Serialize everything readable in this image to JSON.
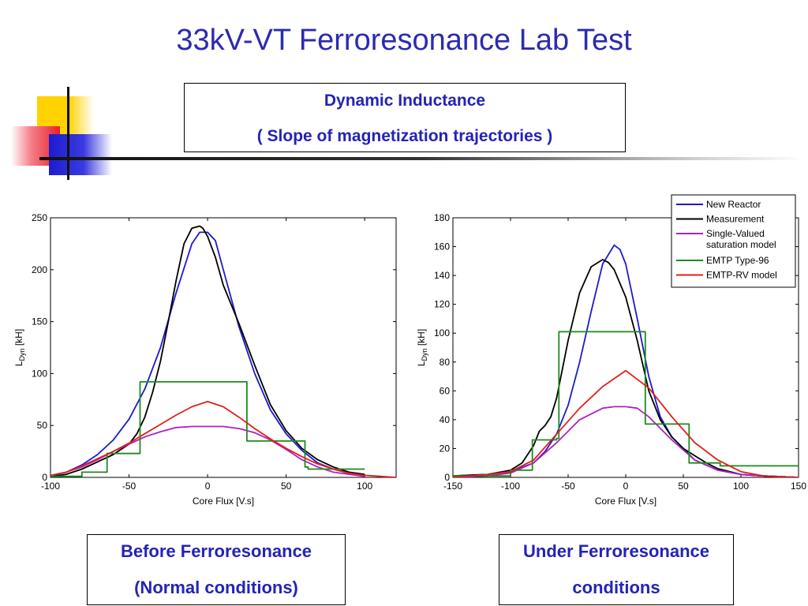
{
  "slide": {
    "title": "33kV-VT Ferroresonance Lab Test",
    "subtitle_line1": "Dynamic Inductance",
    "subtitle_line2": "( Slope of magnetization trajectories )"
  },
  "captions": {
    "left_line1": "Before Ferroresonance",
    "left_line2": "(Normal conditions)",
    "right_line1": "Under Ferroresonance",
    "right_line2": "conditions"
  },
  "colors": {
    "title": "#2b2bb0",
    "new_reactor": "#1a1acc",
    "measurement": "#000000",
    "single_valued": "#b020c0",
    "emtp_type96": "#1e8a1e",
    "emtp_rv": "#e0201a"
  },
  "chart_data": [
    {
      "type": "line",
      "xlabel": "Core Flux [V.s]",
      "ylabel": "L",
      "ylabel_sub": "Dyn",
      "ylabel_unit": " [kH]",
      "xlim": [
        -100,
        120
      ],
      "ylim": [
        0,
        250
      ],
      "xticks": [
        -100,
        -50,
        0,
        50,
        100
      ],
      "yticks": [
        0,
        50,
        100,
        150,
        200,
        250
      ],
      "grid": false,
      "series": [
        {
          "name": "New Reactor",
          "color": "#1a1acc",
          "x": [
            -98,
            -90,
            -80,
            -70,
            -60,
            -50,
            -40,
            -30,
            -20,
            -10,
            -5,
            0,
            5,
            10,
            20,
            30,
            40,
            50,
            60,
            70,
            80,
            90,
            100
          ],
          "y": [
            2,
            5,
            12,
            22,
            36,
            56,
            85,
            125,
            178,
            225,
            236,
            236,
            228,
            200,
            145,
            100,
            65,
            42,
            26,
            14,
            8,
            4,
            2
          ]
        },
        {
          "name": "Measurement",
          "color": "#000000",
          "x": [
            -98,
            -90,
            -80,
            -70,
            -60,
            -50,
            -45,
            -40,
            -35,
            -30,
            -25,
            -20,
            -15,
            -10,
            -5,
            -3,
            0,
            5,
            10,
            20,
            30,
            40,
            50,
            60,
            70,
            80,
            90,
            100
          ],
          "y": [
            1,
            3,
            8,
            15,
            22,
            32,
            42,
            58,
            82,
            112,
            150,
            190,
            225,
            240,
            242,
            240,
            232,
            212,
            185,
            148,
            108,
            70,
            45,
            28,
            17,
            10,
            5,
            3
          ]
        },
        {
          "name": "Single-Valued saturation model",
          "color": "#b020c0",
          "x": [
            -92,
            -80,
            -70,
            -60,
            -50,
            -40,
            -30,
            -20,
            -10,
            0,
            10,
            20,
            30,
            40,
            50,
            60,
            70,
            80,
            90,
            100
          ],
          "y": [
            4,
            10,
            17,
            25,
            32,
            39,
            44,
            48,
            49,
            49,
            49,
            47,
            43,
            36,
            27,
            17,
            10,
            5,
            3,
            1
          ]
        },
        {
          "name": "EMTP Type-96",
          "color": "#1e8a1e",
          "x": [
            -100,
            -80,
            -80,
            -64,
            -64,
            -43,
            -43,
            25,
            25,
            62,
            62,
            64,
            64,
            100
          ],
          "y": [
            1,
            1,
            5,
            5,
            23,
            23,
            92,
            92,
            35,
            35,
            10,
            10,
            8,
            8
          ]
        },
        {
          "name": "EMTP-RV model",
          "color": "#e0201a",
          "x": [
            -100,
            -90,
            -80,
            -70,
            -60,
            -50,
            -40,
            -30,
            -20,
            -10,
            0,
            10,
            20,
            30,
            40,
            50,
            60,
            70,
            80,
            90,
            100,
            110,
            120
          ],
          "y": [
            2,
            5,
            11,
            18,
            25,
            33,
            42,
            51,
            60,
            68,
            73,
            68,
            58,
            47,
            37,
            28,
            20,
            13,
            8,
            4,
            2,
            1,
            0
          ]
        }
      ]
    },
    {
      "type": "line",
      "xlabel": "Core Flux [V.s]",
      "ylabel": "L",
      "ylabel_sub": "Dyn",
      "ylabel_unit": " [kH]",
      "xlim": [
        -150,
        150
      ],
      "ylim": [
        0,
        180
      ],
      "xticks": [
        -150,
        -100,
        -50,
        0,
        50,
        100,
        150
      ],
      "yticks": [
        0,
        20,
        40,
        60,
        80,
        100,
        120,
        140,
        160,
        180
      ],
      "grid": false,
      "legend": "top-right",
      "series": [
        {
          "name": "New Reactor",
          "color": "#1a1acc",
          "x": [
            -150,
            -120,
            -100,
            -80,
            -70,
            -60,
            -50,
            -40,
            -30,
            -20,
            -10,
            -5,
            0,
            10,
            20,
            30,
            40,
            50,
            60,
            80,
            100,
            120,
            150
          ],
          "y": [
            1,
            2,
            4,
            10,
            18,
            30,
            50,
            80,
            115,
            148,
            161,
            158,
            148,
            110,
            70,
            42,
            28,
            20,
            12,
            5,
            2,
            1,
            0
          ]
        },
        {
          "name": "Measurement",
          "color": "#000000",
          "x": [
            -150,
            -120,
            -100,
            -90,
            -80,
            -75,
            -70,
            -65,
            -60,
            -50,
            -40,
            -30,
            -20,
            -15,
            -10,
            0,
            10,
            20,
            30,
            40,
            50,
            60,
            70,
            80,
            100,
            120,
            150
          ],
          "y": [
            1,
            2,
            5,
            10,
            22,
            32,
            36,
            42,
            55,
            95,
            128,
            146,
            151,
            149,
            144,
            125,
            95,
            60,
            40,
            28,
            20,
            15,
            10,
            6,
            2,
            1,
            0
          ]
        },
        {
          "name": "Single-Valued saturation model",
          "color": "#b020c0",
          "x": [
            -150,
            -120,
            -100,
            -80,
            -60,
            -40,
            -20,
            -10,
            0,
            10,
            20,
            40,
            60,
            80,
            100,
            120,
            150
          ],
          "y": [
            0,
            1,
            3,
            10,
            24,
            40,
            48,
            49,
            49,
            48,
            42,
            26,
            12,
            5,
            2,
            1,
            0
          ]
        },
        {
          "name": "EMTP Type-96",
          "color": "#1e8a1e",
          "x": [
            -150,
            -100,
            -100,
            -81,
            -81,
            -60,
            -60,
            -58,
            -58,
            17,
            17,
            55,
            55,
            82,
            82,
            150
          ],
          "y": [
            1,
            1,
            5,
            5,
            26,
            26,
            27,
            27,
            101,
            101,
            37,
            37,
            10,
            10,
            8,
            8
          ]
        },
        {
          "name": "EMTP-RV model",
          "color": "#e0201a",
          "x": [
            -150,
            -120,
            -100,
            -80,
            -60,
            -40,
            -20,
            0,
            20,
            40,
            60,
            80,
            100,
            120,
            150
          ],
          "y": [
            0,
            2,
            4,
            12,
            30,
            48,
            63,
            74,
            62,
            42,
            24,
            12,
            4,
            1,
            0
          ]
        }
      ]
    }
  ]
}
